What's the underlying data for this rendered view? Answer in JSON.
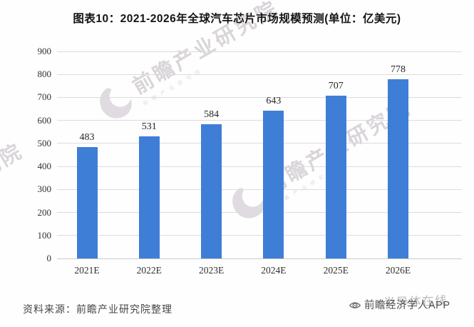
{
  "title": "图表10：2021-2026年全球汽车芯片市场规模预测(单位：亿美元)",
  "chart_data": {
    "type": "bar",
    "categories": [
      "2021E",
      "2022E",
      "2023E",
      "2024E",
      "2025E",
      "2026E"
    ],
    "values": [
      483,
      531,
      584,
      643,
      707,
      778
    ],
    "title": "图表10：2021-2026年全球汽车芯片市场规模预测(单位：亿美元)",
    "xlabel": "",
    "ylabel": "",
    "ylim": [
      0,
      900
    ],
    "ytick_step": 100,
    "grid": true,
    "legend": "none",
    "value_labels": true,
    "bar_color": "#3e7ed7"
  },
  "colors": {
    "bar": "#3e7ed7",
    "gridline": "#dcdcdc",
    "axis_line": "#c9c9c9",
    "tick_label": "#303030",
    "value_label": "#262626",
    "title": "#141414",
    "source_text": "#464646",
    "brand_text": "#4f4f4f",
    "watermark": "#c4bcc4",
    "overlay_watermark": "#9e9e9e"
  },
  "footer": {
    "source": "资料来源：前瞻产业研究院整理",
    "brand": "前瞻经济学人APP"
  },
  "watermarks": {
    "diagonal_text": "前瞻产业研究院",
    "diagonal_subtext": "前瞻产业研究院",
    "overlay_text": "半导体在线"
  }
}
